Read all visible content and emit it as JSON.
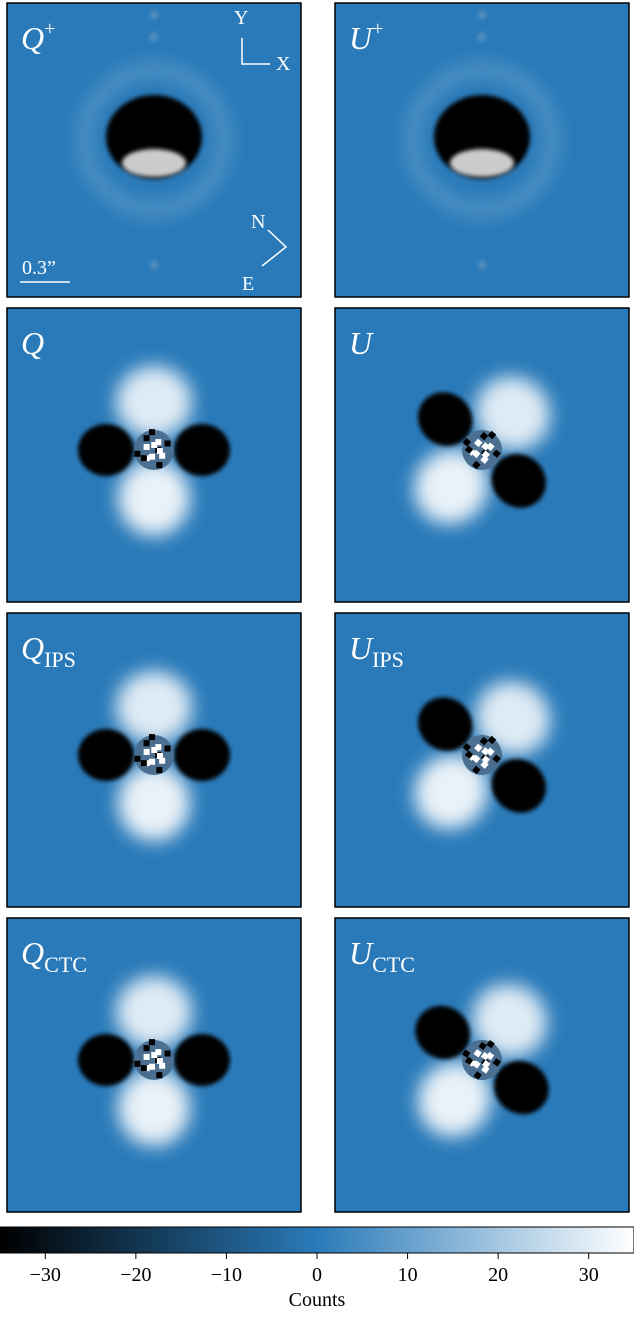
{
  "chart_data": {
    "type": "image-grid",
    "panels": [
      {
        "symbol": "Q",
        "sup": "+"
      },
      {
        "symbol": "U",
        "sup": "+"
      },
      {
        "symbol": "Q"
      },
      {
        "symbol": "U"
      },
      {
        "symbol": "Q",
        "sub": "IPS"
      },
      {
        "symbol": "U",
        "sub": "IPS"
      },
      {
        "symbol": "Q",
        "sub": "CTC"
      },
      {
        "symbol": "U",
        "sub": "CTC"
      }
    ],
    "annotations": {
      "y_axis": "Y",
      "x_axis": "X",
      "north": "N",
      "east": "E",
      "scale": "0.3”"
    },
    "colorbar": {
      "label": "Counts",
      "lim": [
        -35,
        35
      ],
      "ticks": [
        {
          "value": -30,
          "label": "−30"
        },
        {
          "value": -20,
          "label": "−20"
        },
        {
          "value": -10,
          "label": "−10"
        },
        0,
        10,
        20,
        30
      ],
      "colors": [
        "#000000",
        "#2a7ab9",
        "#ffffff"
      ]
    }
  }
}
